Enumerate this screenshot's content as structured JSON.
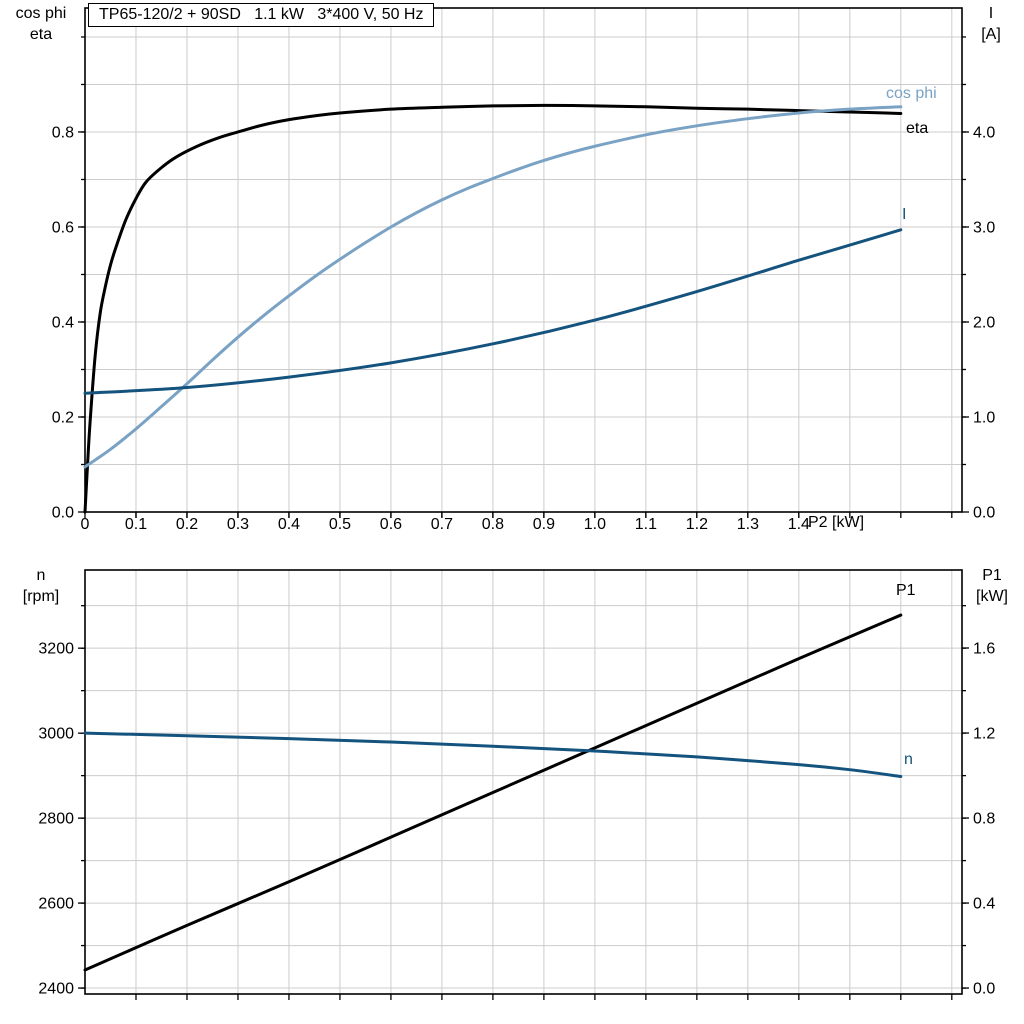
{
  "colors": {
    "curve_black": "#000000",
    "curve_light_blue": "#7aa2c4",
    "curve_dark_blue": "#14537e",
    "grid": "#cccccc",
    "axis": "#000000",
    "background": "#ffffff"
  },
  "chart_data": [
    {
      "type": "line",
      "title": "TP65-120/2 + 90SD   1.1 kW   3*400 V, 50 Hz",
      "x_axis": {
        "label": "P2 [kW]",
        "ticks": [
          0,
          0.1,
          0.2,
          0.3,
          0.4,
          0.5,
          0.6,
          0.7,
          0.8,
          0.9,
          1.0,
          1.1,
          1.2,
          1.3,
          1.4
        ],
        "tick_labels": [
          "0",
          "0.1",
          "0.2",
          "0.3",
          "0.4",
          "0.5",
          "0.6",
          "0.7",
          "0.8",
          "0.9",
          "1.0",
          "1.1",
          "1.2",
          "1.3",
          "1.4"
        ],
        "range": [
          0,
          1.72
        ],
        "grid_step": 0.1
      },
      "left_axis": {
        "label_lines": [
          "cos phi",
          "eta"
        ],
        "ticks": [
          0,
          0.2,
          0.4,
          0.6,
          0.8
        ],
        "tick_labels": [
          "0.0",
          "0.2",
          "0.4",
          "0.6",
          "0.8"
        ],
        "range": [
          0,
          1.061
        ],
        "grid_step": 0.1
      },
      "right_axis": {
        "label_lines": [
          "I",
          "[A]"
        ],
        "ticks": [
          0,
          1,
          2,
          3,
          4
        ],
        "tick_labels": [
          "0.0",
          "1.0",
          "2.0",
          "3.0",
          "4.0"
        ],
        "range": [
          0,
          5.305
        ]
      },
      "series": [
        {
          "name": "eta",
          "label": "eta",
          "axis": "left",
          "color": "#000000",
          "points": [
            [
              0,
              0
            ],
            [
              0.005,
              0.1
            ],
            [
              0.01,
              0.19
            ],
            [
              0.02,
              0.33
            ],
            [
              0.03,
              0.42
            ],
            [
              0.04,
              0.475
            ],
            [
              0.05,
              0.52
            ],
            [
              0.06,
              0.555
            ],
            [
              0.08,
              0.615
            ],
            [
              0.1,
              0.66
            ],
            [
              0.12,
              0.695
            ],
            [
              0.15,
              0.725
            ],
            [
              0.18,
              0.748
            ],
            [
              0.22,
              0.77
            ],
            [
              0.26,
              0.787
            ],
            [
              0.3,
              0.8
            ],
            [
              0.35,
              0.815
            ],
            [
              0.4,
              0.826
            ],
            [
              0.45,
              0.834
            ],
            [
              0.5,
              0.84
            ],
            [
              0.6,
              0.848
            ],
            [
              0.7,
              0.852
            ],
            [
              0.8,
              0.855
            ],
            [
              0.9,
              0.856
            ],
            [
              1.0,
              0.855
            ],
            [
              1.1,
              0.853
            ],
            [
              1.2,
              0.85
            ],
            [
              1.3,
              0.848
            ],
            [
              1.4,
              0.845
            ],
            [
              1.5,
              0.842
            ],
            [
              1.6,
              0.839
            ]
          ]
        },
        {
          "name": "cos_phi",
          "label": "cos phi",
          "axis": "left",
          "color": "#7aa2c4",
          "points": [
            [
              0,
              0.095
            ],
            [
              0.05,
              0.132
            ],
            [
              0.1,
              0.175
            ],
            [
              0.15,
              0.222
            ],
            [
              0.2,
              0.27
            ],
            [
              0.25,
              0.32
            ],
            [
              0.3,
              0.368
            ],
            [
              0.35,
              0.413
            ],
            [
              0.4,
              0.455
            ],
            [
              0.45,
              0.495
            ],
            [
              0.5,
              0.532
            ],
            [
              0.55,
              0.567
            ],
            [
              0.6,
              0.6
            ],
            [
              0.65,
              0.63
            ],
            [
              0.7,
              0.657
            ],
            [
              0.75,
              0.681
            ],
            [
              0.8,
              0.702
            ],
            [
              0.85,
              0.722
            ],
            [
              0.9,
              0.74
            ],
            [
              0.95,
              0.756
            ],
            [
              1.0,
              0.77
            ],
            [
              1.1,
              0.794
            ],
            [
              1.2,
              0.813
            ],
            [
              1.3,
              0.828
            ],
            [
              1.4,
              0.84
            ],
            [
              1.5,
              0.848
            ],
            [
              1.6,
              0.853
            ]
          ]
        },
        {
          "name": "I",
          "label": "I",
          "axis": "right",
          "color": "#14537e",
          "points": [
            [
              0,
              1.25
            ],
            [
              0.2,
              1.31
            ],
            [
              0.4,
              1.42
            ],
            [
              0.6,
              1.57
            ],
            [
              0.8,
              1.77
            ],
            [
              1.0,
              2.02
            ],
            [
              1.2,
              2.32
            ],
            [
              1.4,
              2.65
            ],
            [
              1.5,
              2.81
            ],
            [
              1.6,
              2.97
            ]
          ]
        }
      ]
    },
    {
      "type": "line",
      "title": "",
      "x_axis": {
        "label": "",
        "ticks": [],
        "tick_labels": [],
        "range": [
          0,
          1.72
        ],
        "grid_step": 0.1
      },
      "left_axis": {
        "label_lines": [
          "n",
          "[rpm]"
        ],
        "ticks": [
          2400,
          2600,
          2800,
          3000,
          3200
        ],
        "tick_labels": [
          "2400",
          "2600",
          "2800",
          "3000",
          "3200"
        ],
        "range": [
          2386,
          3384
        ],
        "grid_step": 100
      },
      "right_axis": {
        "label_lines": [
          "P1",
          "[kW]"
        ],
        "ticks": [
          0,
          0.4,
          0.8,
          1.2,
          1.6
        ],
        "tick_labels": [
          "0.0",
          "0.4",
          "0.8",
          "1.2",
          "1.6"
        ],
        "range": [
          -0.028,
          1.967
        ]
      },
      "series": [
        {
          "name": "P1",
          "label": "P1",
          "axis": "right",
          "color": "#000000",
          "points": [
            [
              0,
              0.085
            ],
            [
              0.2,
              0.295
            ],
            [
              0.4,
              0.5
            ],
            [
              0.6,
              0.71
            ],
            [
              0.8,
              0.92
            ],
            [
              1.0,
              1.13
            ],
            [
              1.2,
              1.34
            ],
            [
              1.4,
              1.55
            ],
            [
              1.6,
              1.755
            ]
          ]
        },
        {
          "name": "n",
          "label": "n",
          "axis": "left",
          "color": "#14537e",
          "points": [
            [
              0,
              3000
            ],
            [
              0.2,
              2994
            ],
            [
              0.4,
              2987
            ],
            [
              0.6,
              2979
            ],
            [
              0.8,
              2969
            ],
            [
              1.0,
              2958
            ],
            [
              1.2,
              2944
            ],
            [
              1.4,
              2926
            ],
            [
              1.5,
              2914
            ],
            [
              1.6,
              2898
            ]
          ]
        }
      ]
    }
  ]
}
